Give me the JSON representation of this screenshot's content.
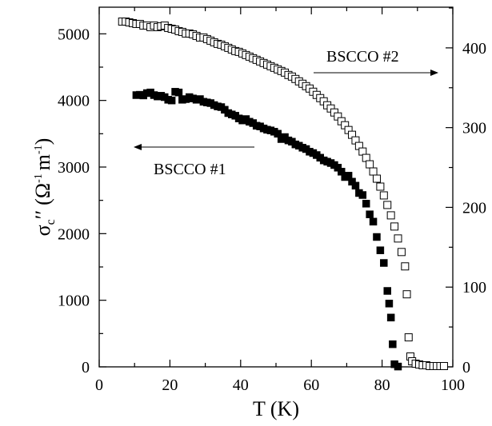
{
  "chart_data": {
    "type": "scatter",
    "xlabel": "T (K)",
    "ylabel": {
      "sigma": "σ",
      "sub": "c",
      "primes": "′′",
      "units_open": "(Ω",
      "exp": "-1",
      "units_mid": "m",
      "units_close": ")"
    },
    "xlim": [
      0,
      100
    ],
    "ylim_left": [
      0,
      5400
    ],
    "ylim_right": [
      0,
      451
    ],
    "x_ticks": [
      "0",
      "20",
      "40",
      "60",
      "80",
      "100"
    ],
    "y_left_ticks": [
      "0",
      "1000",
      "2000",
      "3000",
      "4000",
      "5000"
    ],
    "y_right_ticks": [
      "0",
      "100",
      "200",
      "300",
      "400"
    ],
    "grid": false,
    "annotations": [
      {
        "text": "BSCCO #1",
        "arrow": "left",
        "axis": "left"
      },
      {
        "text": "BSCCO #2",
        "arrow": "right",
        "axis": "right"
      }
    ],
    "series": [
      {
        "name": "BSCCO #1",
        "axis": "left",
        "marker": "filled-square",
        "points": [
          [
            10.5,
            4080
          ],
          [
            11.5,
            4085
          ],
          [
            12.5,
            4075
          ],
          [
            13.5,
            4110
          ],
          [
            14.5,
            4120
          ],
          [
            15.5,
            4080
          ],
          [
            16.5,
            4060
          ],
          [
            17.5,
            4070
          ],
          [
            18.5,
            4050
          ],
          [
            19.5,
            4010
          ],
          [
            20.5,
            4000
          ],
          [
            21.5,
            4130
          ],
          [
            22.5,
            4120
          ],
          [
            23.5,
            4010
          ],
          [
            24.5,
            4020
          ],
          [
            25.5,
            4050
          ],
          [
            26.5,
            4030
          ],
          [
            27.5,
            4010
          ],
          [
            28.5,
            4020
          ],
          [
            29.5,
            3980
          ],
          [
            30.5,
            3970
          ],
          [
            31.5,
            3960
          ],
          [
            32.5,
            3930
          ],
          [
            33.5,
            3910
          ],
          [
            34.5,
            3900
          ],
          [
            35.5,
            3860
          ],
          [
            36.5,
            3810
          ],
          [
            37.5,
            3790
          ],
          [
            38.5,
            3770
          ],
          [
            39.5,
            3730
          ],
          [
            40.5,
            3700
          ],
          [
            41.5,
            3720
          ],
          [
            42.5,
            3680
          ],
          [
            43.5,
            3660
          ],
          [
            44.5,
            3620
          ],
          [
            45.5,
            3610
          ],
          [
            46.5,
            3580
          ],
          [
            47.5,
            3560
          ],
          [
            48.5,
            3550
          ],
          [
            49.5,
            3530
          ],
          [
            50.5,
            3500
          ],
          [
            51.5,
            3420
          ],
          [
            52.5,
            3450
          ],
          [
            53.5,
            3400
          ],
          [
            54.5,
            3380
          ],
          [
            55.5,
            3340
          ],
          [
            56.5,
            3320
          ],
          [
            57.5,
            3290
          ],
          [
            58.5,
            3270
          ],
          [
            59.5,
            3230
          ],
          [
            60.5,
            3210
          ],
          [
            61.5,
            3180
          ],
          [
            62.5,
            3140
          ],
          [
            63.5,
            3100
          ],
          [
            64.5,
            3080
          ],
          [
            65.5,
            3060
          ],
          [
            66.5,
            3030
          ],
          [
            67.5,
            2990
          ],
          [
            68.5,
            2930
          ],
          [
            69.5,
            2850
          ],
          [
            70.5,
            2870
          ],
          [
            71.5,
            2780
          ],
          [
            72.5,
            2720
          ],
          [
            73.5,
            2610
          ],
          [
            74.5,
            2580
          ],
          [
            75.5,
            2450
          ],
          [
            76.5,
            2290
          ],
          [
            77.5,
            2180
          ],
          [
            78.5,
            1950
          ],
          [
            79.5,
            1750
          ],
          [
            80.5,
            1560
          ],
          [
            81.5,
            1140
          ],
          [
            82.0,
            950
          ],
          [
            82.5,
            740
          ],
          [
            83.0,
            340
          ],
          [
            83.5,
            40
          ],
          [
            84.5,
            5
          ]
        ]
      },
      {
        "name": "BSCCO #2",
        "axis": "right",
        "marker": "open-square",
        "points": [
          [
            6.5,
            433
          ],
          [
            7.5,
            433
          ],
          [
            8.5,
            432
          ],
          [
            9.5,
            431
          ],
          [
            10.5,
            430
          ],
          [
            11.5,
            430
          ],
          [
            12.5,
            428
          ],
          [
            13.5,
            428
          ],
          [
            14.5,
            426
          ],
          [
            15.5,
            428
          ],
          [
            16.5,
            426
          ],
          [
            17.5,
            427
          ],
          [
            18.5,
            428
          ],
          [
            19.5,
            425
          ],
          [
            20.5,
            424
          ],
          [
            21.5,
            423
          ],
          [
            22.5,
            421
          ],
          [
            23.5,
            420
          ],
          [
            24.5,
            418
          ],
          [
            25.5,
            418
          ],
          [
            26.5,
            417
          ],
          [
            27.5,
            415
          ],
          [
            28.5,
            413
          ],
          [
            29.5,
            413
          ],
          [
            30.5,
            411
          ],
          [
            31.5,
            409
          ],
          [
            32.5,
            407
          ],
          [
            33.5,
            405
          ],
          [
            34.5,
            404
          ],
          [
            35.5,
            402
          ],
          [
            36.5,
            400
          ],
          [
            37.5,
            398
          ],
          [
            38.5,
            396
          ],
          [
            39.5,
            395
          ],
          [
            40.5,
            393
          ],
          [
            41.5,
            391
          ],
          [
            42.5,
            389
          ],
          [
            43.5,
            387
          ],
          [
            44.5,
            385
          ],
          [
            45.5,
            383
          ],
          [
            46.5,
            381
          ],
          [
            47.5,
            379
          ],
          [
            48.5,
            377
          ],
          [
            49.5,
            375
          ],
          [
            50.5,
            373
          ],
          [
            51.5,
            371
          ],
          [
            52.5,
            369
          ],
          [
            53.5,
            366
          ],
          [
            54.5,
            364
          ],
          [
            55.5,
            361
          ],
          [
            56.5,
            358
          ],
          [
            57.5,
            355
          ],
          [
            58.5,
            352
          ],
          [
            59.5,
            349
          ],
          [
            60.5,
            345
          ],
          [
            61.5,
            341
          ],
          [
            62.5,
            337
          ],
          [
            63.5,
            333
          ],
          [
            64.5,
            328
          ],
          [
            65.5,
            324
          ],
          [
            66.5,
            319
          ],
          [
            67.5,
            314
          ],
          [
            68.5,
            308
          ],
          [
            69.5,
            303
          ],
          [
            70.5,
            297
          ],
          [
            71.5,
            291
          ],
          [
            72.5,
            284
          ],
          [
            73.5,
            277
          ],
          [
            74.5,
            270
          ],
          [
            75.5,
            262
          ],
          [
            76.5,
            254
          ],
          [
            77.5,
            245
          ],
          [
            78.5,
            236
          ],
          [
            79.5,
            226
          ],
          [
            80.5,
            215
          ],
          [
            81.5,
            203
          ],
          [
            82.5,
            190
          ],
          [
            83.5,
            176
          ],
          [
            84.5,
            161
          ],
          [
            85.5,
            144
          ],
          [
            86.5,
            126
          ],
          [
            87.0,
            91
          ],
          [
            87.5,
            37
          ],
          [
            88.0,
            13
          ],
          [
            88.5,
            7
          ],
          [
            89.5,
            4
          ],
          [
            90.5,
            3
          ],
          [
            91.5,
            2
          ],
          [
            92.5,
            2
          ],
          [
            93.5,
            1
          ],
          [
            94.5,
            1
          ],
          [
            95.5,
            1
          ],
          [
            96.5,
            1
          ],
          [
            97.5,
            1
          ]
        ]
      }
    ]
  }
}
